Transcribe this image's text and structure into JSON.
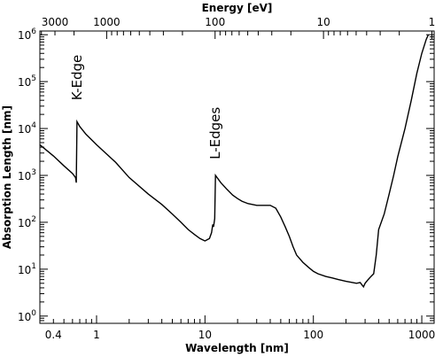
{
  "chart_data": {
    "type": "line",
    "title": "",
    "xlabel": "Wavelength [nm]",
    "ylabel": "Absorption Length [nm]",
    "x2label": "Energy [eV]",
    "xscale": "log",
    "yscale": "log",
    "xlim": [
      0.3,
      1300
    ],
    "ylim": [
      0.7,
      1200000
    ],
    "grid": false,
    "legend": "none",
    "x_ticks": [
      {
        "value": 0.4,
        "label": "0.4"
      },
      {
        "value": 1,
        "label": "1"
      },
      {
        "value": 10,
        "label": "10"
      },
      {
        "value": 100,
        "label": "100"
      },
      {
        "value": 1000,
        "label": "1000"
      }
    ],
    "y_ticks": [
      {
        "value": 1,
        "base": "10",
        "exp": "0"
      },
      {
        "value": 10,
        "base": "10",
        "exp": "1"
      },
      {
        "value": 100,
        "base": "10",
        "exp": "2"
      },
      {
        "value": 1000,
        "base": "10",
        "exp": "3"
      },
      {
        "value": 10000,
        "base": "10",
        "exp": "4"
      },
      {
        "value": 100000,
        "base": "10",
        "exp": "5"
      },
      {
        "value": 1000000,
        "base": "10",
        "exp": "6"
      }
    ],
    "energy_ticks": [
      {
        "energy": 3000,
        "label": "3000"
      },
      {
        "energy": 1000,
        "label": "1000"
      },
      {
        "energy": 100,
        "label": "100"
      },
      {
        "energy": 10,
        "label": "10"
      },
      {
        "energy": 1,
        "label": "1"
      }
    ],
    "annotations": [
      {
        "text": "K-Edge",
        "x": 0.66,
        "y": 40000
      },
      {
        "text": "L-Edges",
        "x": 12.4,
        "y": 2200
      }
    ],
    "series": [
      {
        "name": "",
        "x": [
          0.3,
          0.4,
          0.5,
          0.6,
          0.64,
          0.65,
          0.66,
          0.7,
          0.8,
          1,
          1.5,
          2,
          3,
          4,
          5,
          6,
          7,
          8,
          9,
          10,
          11,
          11.5,
          11.8,
          12.0,
          12.3,
          12.5,
          14,
          16,
          18,
          20,
          22,
          25,
          30,
          35,
          40,
          45,
          50,
          55,
          60,
          65,
          70,
          80,
          90,
          100,
          110,
          130,
          150,
          170,
          200,
          230,
          250,
          270,
          290,
          300,
          320,
          340,
          360,
          380,
          400,
          450,
          500,
          550,
          600,
          700,
          800,
          900,
          1000,
          1100,
          1150
        ],
        "y": [
          4500,
          2600,
          1600,
          1100,
          900,
          700,
          14000,
          11000,
          7500,
          4500,
          1900,
          900,
          400,
          240,
          150,
          100,
          70,
          55,
          45,
          40,
          45,
          60,
          90,
          80,
          120,
          1000,
          700,
          500,
          380,
          320,
          280,
          250,
          230,
          230,
          230,
          200,
          130,
          80,
          50,
          30,
          20,
          14,
          11,
          9,
          8,
          7,
          6.5,
          6,
          5.5,
          5.2,
          5.0,
          5.2,
          4.2,
          5.0,
          6.0,
          7.0,
          8.0,
          20,
          70,
          150,
          400,
          1000,
          2500,
          10000,
          40000,
          150000,
          400000,
          800000,
          1000000
        ]
      }
    ]
  }
}
